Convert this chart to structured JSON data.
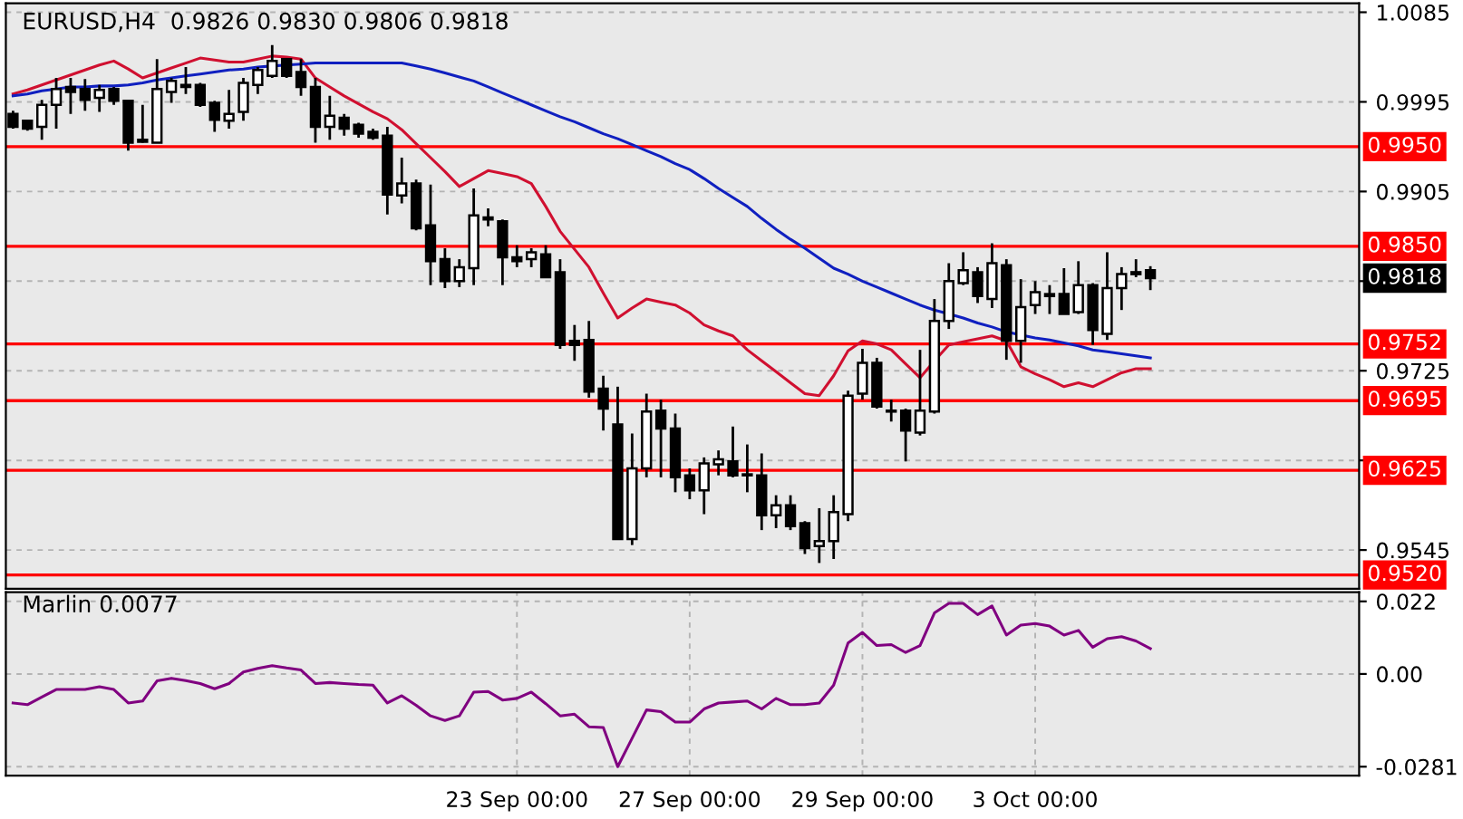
{
  "chart_data": [
    {
      "type": "candlestick",
      "title": "EURUSD,H4  0.9826 0.9830 0.9806 0.9818",
      "grid": true,
      "tick_labels": "y",
      "categories": [
        null,
        null,
        null,
        null,
        null,
        null,
        null,
        null,
        null,
        null,
        null,
        null,
        null,
        null,
        null,
        null,
        null,
        null,
        null,
        null,
        null,
        null,
        null,
        null,
        null,
        null,
        null,
        null,
        null,
        null,
        null,
        null,
        null,
        null,
        null,
        null,
        null,
        null,
        null,
        null,
        null,
        null,
        null,
        null,
        null,
        null,
        null,
        null,
        null,
        null,
        null,
        null,
        null,
        null,
        null,
        null,
        null,
        null,
        null,
        null,
        null,
        null,
        null,
        null,
        null,
        null,
        null,
        null,
        null,
        null,
        null,
        null,
        null,
        null,
        null,
        null,
        null,
        null,
        null,
        null,
        null,
        null,
        null,
        null,
        null,
        null,
        null,
        null,
        null,
        null,
        null,
        null,
        null,
        null
      ],
      "ohlc": [
        [
          0.9983,
          0.9986,
          0.9968,
          0.997
        ],
        [
          0.9976,
          0.9977,
          0.9966,
          0.9968
        ],
        [
          0.997,
          0.9997,
          0.9957,
          0.9992
        ],
        [
          0.9992,
          1.0019,
          0.9968,
          1.0008
        ],
        [
          1.001,
          1.0019,
          0.9983,
          1.0005
        ],
        [
          1.0008,
          1.0018,
          0.9986,
          0.9997
        ],
        [
          0.9999,
          1.0012,
          0.9985,
          1.0007
        ],
        [
          1.0008,
          1.001,
          0.9992,
          0.9996
        ],
        [
          0.9996,
          0.9997,
          0.9946,
          0.9954
        ],
        [
          0.9955,
          0.9992,
          0.9954,
          0.9957
        ],
        [
          0.9954,
          1.0038,
          0.9954,
          1.0008
        ],
        [
          1.0005,
          1.0019,
          0.9994,
          1.0016
        ],
        [
          1.001,
          1.003,
          1.0003,
          1.0012
        ],
        [
          1.0012,
          1.0014,
          0.999,
          0.9992
        ],
        [
          0.9994,
          0.9996,
          0.9965,
          0.9977
        ],
        [
          0.9976,
          1.0007,
          0.9968,
          0.9983
        ],
        [
          0.9985,
          1.0019,
          0.9976,
          1.0014
        ],
        [
          1.0012,
          1.003,
          1.0003,
          1.0027
        ],
        [
          1.0021,
          1.0052,
          1.0019,
          1.0036
        ],
        [
          1.0038,
          1.0039,
          1.0019,
          1.0021
        ],
        [
          1.0025,
          1.0038,
          1.0001,
          1.001
        ],
        [
          1.001,
          1.0019,
          0.9954,
          0.997
        ],
        [
          0.997,
          1.0001,
          0.9957,
          0.9981
        ],
        [
          0.9979,
          0.9983,
          0.9961,
          0.9968
        ],
        [
          0.9972,
          0.9974,
          0.9959,
          0.9963
        ],
        [
          0.9965,
          0.9968,
          0.9957,
          0.9959
        ],
        [
          0.9961,
          0.997,
          0.9882,
          0.9902
        ],
        [
          0.9901,
          0.9939,
          0.9893,
          0.9913
        ],
        [
          0.9913,
          0.9917,
          0.9866,
          0.9868
        ],
        [
          0.9871,
          0.9912,
          0.9811,
          0.9835
        ],
        [
          0.9837,
          0.9848,
          0.9808,
          0.9815
        ],
        [
          0.9815,
          0.9837,
          0.9809,
          0.9829
        ],
        [
          0.9828,
          0.9908,
          0.9811,
          0.9881
        ],
        [
          0.9877,
          0.9888,
          0.987,
          0.9879
        ],
        [
          0.9875,
          0.9877,
          0.9811,
          0.9839
        ],
        [
          0.9839,
          0.9851,
          0.9829,
          0.9835
        ],
        [
          0.9837,
          0.9848,
          0.9829,
          0.9844
        ],
        [
          0.9842,
          0.9851,
          0.9819,
          0.9819
        ],
        [
          0.9824,
          0.9837,
          0.9747,
          0.9751
        ],
        [
          0.9755,
          0.9771,
          0.9735,
          0.9751
        ],
        [
          0.9756,
          0.9775,
          0.9698,
          0.9704
        ],
        [
          0.9707,
          0.972,
          0.9665,
          0.9687
        ],
        [
          0.9671,
          0.9709,
          0.9556,
          0.9556
        ],
        [
          0.9556,
          0.9662,
          0.955,
          0.9627
        ],
        [
          0.9627,
          0.9702,
          0.9618,
          0.9684
        ],
        [
          0.9685,
          0.9696,
          0.9618,
          0.9667
        ],
        [
          0.9667,
          0.9682,
          0.9603,
          0.9618
        ],
        [
          0.962,
          0.9627,
          0.9596,
          0.9605
        ],
        [
          0.9605,
          0.9638,
          0.9581,
          0.9632
        ],
        [
          0.9631,
          0.9645,
          0.962,
          0.9636
        ],
        [
          0.9634,
          0.9669,
          0.9618,
          0.962
        ],
        [
          0.9621,
          0.9651,
          0.9603,
          0.962
        ],
        [
          0.962,
          0.9642,
          0.9565,
          0.958
        ],
        [
          0.958,
          0.96,
          0.9567,
          0.959
        ],
        [
          0.959,
          0.96,
          0.9565,
          0.9569
        ],
        [
          0.9572,
          0.9574,
          0.9541,
          0.9547
        ],
        [
          0.9549,
          0.9587,
          0.9532,
          0.9554
        ],
        [
          0.9554,
          0.96,
          0.9536,
          0.9583
        ],
        [
          0.9581,
          0.9705,
          0.9574,
          0.97
        ],
        [
          0.9702,
          0.9747,
          0.9696,
          0.9733
        ],
        [
          0.9733,
          0.9738,
          0.9687,
          0.9689
        ],
        [
          0.9685,
          0.9696,
          0.9674,
          0.9684
        ],
        [
          0.9685,
          0.9687,
          0.9634,
          0.9665
        ],
        [
          0.9663,
          0.9746,
          0.966,
          0.9685
        ],
        [
          0.9684,
          0.9797,
          0.9682,
          0.9775
        ],
        [
          0.9775,
          0.9833,
          0.9767,
          0.9815
        ],
        [
          0.9813,
          0.9844,
          0.9811,
          0.9826
        ],
        [
          0.9824,
          0.9829,
          0.9793,
          0.98
        ],
        [
          0.9797,
          0.9853,
          0.9788,
          0.9833
        ],
        [
          0.9831,
          0.9837,
          0.9736,
          0.9755
        ],
        [
          0.9755,
          0.9817,
          0.9733,
          0.9789
        ],
        [
          0.9791,
          0.9815,
          0.9782,
          0.9804
        ],
        [
          0.9802,
          0.9811,
          0.9782,
          0.98
        ],
        [
          0.9802,
          0.9828,
          0.9782,
          0.9782
        ],
        [
          0.9784,
          0.9835,
          0.9782,
          0.9811
        ],
        [
          0.9811,
          0.9813,
          0.9751,
          0.9766
        ],
        [
          0.9762,
          0.9844,
          0.9756,
          0.9808
        ],
        [
          0.9808,
          0.9829,
          0.9786,
          0.9822
        ],
        [
          0.9822,
          0.9837,
          0.9819,
          0.9824
        ],
        [
          0.9826,
          0.983,
          0.9806,
          0.9818
        ],
        null,
        null,
        null,
        null,
        null,
        null,
        null,
        null,
        null,
        null,
        null,
        null,
        null,
        null
      ],
      "series": [
        {
          "type": "line",
          "color": "#d01030",
          "values": [
            1.0003,
            1.0007,
            1.0012,
            1.0017,
            1.0022,
            1.0027,
            1.0032,
            1.0036,
            1.0028,
            1.0019,
            1.0024,
            1.0029,
            1.0034,
            1.0039,
            1.0037,
            1.0035,
            1.0035,
            1.0038,
            1.0041,
            1.004,
            1.0038,
            1.0019,
            1.001,
            1.0001,
            0.9993,
            0.9985,
            0.9978,
            0.9967,
            0.9953,
            0.9939,
            0.9925,
            0.991,
            0.9918,
            0.9926,
            0.9923,
            0.992,
            0.9913,
            0.989,
            0.9865,
            0.9847,
            0.9829,
            0.9803,
            0.9778,
            0.9788,
            0.9797,
            0.9794,
            0.9791,
            0.9783,
            0.9771,
            0.9765,
            0.976,
            0.9746,
            0.9735,
            0.9724,
            0.9713,
            0.9702,
            0.97,
            0.972,
            0.9745,
            0.9755,
            0.9752,
            0.9746,
            0.9732,
            0.9718,
            0.9735,
            0.9751,
            0.9754,
            0.9757,
            0.976,
            0.9755,
            0.9729,
            0.9722,
            0.9716,
            0.9709,
            0.9713,
            0.9709,
            0.9716,
            0.9723,
            0.9727,
            0.9727,
            null,
            null,
            null,
            null,
            null,
            null,
            null,
            null,
            null,
            null,
            null,
            null,
            null,
            null
          ]
        },
        {
          "type": "line",
          "color": "#1020c0",
          "values": [
            1.0001,
            1.0003,
            1.0006,
            1.0008,
            1.001,
            1.001,
            1.0011,
            1.0011,
            1.0012,
            1.0014,
            1.0017,
            1.0019,
            1.0021,
            1.0023,
            1.0025,
            1.0027,
            1.0028,
            1.003,
            1.0031,
            1.0032,
            1.0033,
            1.0034,
            1.0034,
            1.0034,
            1.0034,
            1.0034,
            1.0034,
            1.0034,
            1.0031,
            1.0028,
            1.0024,
            1.002,
            1.0016,
            1.001,
            1.0004,
            0.9998,
            0.9992,
            0.9986,
            0.998,
            0.9975,
            0.9969,
            0.9963,
            0.9958,
            0.9952,
            0.9946,
            0.994,
            0.9933,
            0.9927,
            0.9918,
            0.9908,
            0.9899,
            0.989,
            0.9878,
            0.9867,
            0.9857,
            0.9848,
            0.9838,
            0.9828,
            0.9822,
            0.9815,
            0.9809,
            0.9803,
            0.9797,
            0.9791,
            0.9786,
            0.9782,
            0.9778,
            0.9773,
            0.9769,
            0.9764,
            0.9761,
            0.9758,
            0.9756,
            0.9753,
            0.975,
            0.9746,
            0.9744,
            0.9742,
            0.974,
            0.9738,
            null,
            null,
            null,
            null,
            null,
            null,
            null,
            null,
            null,
            null,
            null,
            null,
            null,
            null
          ]
        }
      ],
      "ref_lines": [
        {
          "axis": "y",
          "value": 0.995,
          "label": "0.9950",
          "color": "#ff0000"
        },
        {
          "axis": "y",
          "value": 0.985,
          "label": "0.9850",
          "color": "#ff0000"
        },
        {
          "axis": "y",
          "value": 0.9752,
          "label": "0.9752",
          "color": "#ff0000"
        },
        {
          "axis": "y",
          "value": 0.9695,
          "label": "0.9695",
          "color": "#ff0000"
        },
        {
          "axis": "y",
          "value": 0.9625,
          "label": "0.9625",
          "color": "#ff0000"
        },
        {
          "axis": "y",
          "value": 0.952,
          "label": "0.9520",
          "color": "#ff0000"
        }
      ],
      "annotations": [
        "0.9818"
      ],
      "ylim": [
        0.9506,
        1.0094
      ],
      "yticks": [
        1.0085,
        0.9995,
        0.9905,
        {
          "value": 0.9815,
          "label": null
        },
        0.9725,
        {
          "value": 0.9635,
          "label": null
        },
        0.9545
      ]
    },
    {
      "type": "line",
      "title": "Marlin 0.0077",
      "grid": true,
      "categories": [
        null,
        null,
        null,
        null,
        null,
        null,
        null,
        null,
        null,
        null,
        null,
        null,
        null,
        null,
        null,
        null,
        null,
        null,
        null,
        null,
        null,
        null,
        null,
        null,
        null,
        null,
        null,
        null,
        null,
        null,
        null,
        null,
        null,
        null,
        null,
        "23 Sep 00:00",
        null,
        null,
        null,
        null,
        null,
        null,
        null,
        null,
        null,
        null,
        null,
        "27 Sep 00:00",
        null,
        null,
        null,
        null,
        null,
        null,
        null,
        null,
        null,
        null,
        null,
        "29 Sep 00:00",
        null,
        null,
        null,
        null,
        null,
        null,
        null,
        null,
        null,
        null,
        null,
        "3 Oct 00:00",
        null,
        null,
        null,
        null,
        null,
        null,
        null,
        null,
        null,
        null,
        null,
        null,
        null,
        null,
        null,
        null,
        null,
        null,
        null,
        null,
        null,
        null
      ],
      "series": [
        {
          "color": "#800080",
          "values": [
            -0.0088,
            -0.0093,
            -0.007,
            -0.0047,
            -0.0047,
            -0.0047,
            -0.0039,
            -0.0047,
            -0.0088,
            -0.0082,
            -0.0021,
            -0.0013,
            -0.002,
            -0.0029,
            -0.0045,
            -0.0029,
            0.0006,
            0.0017,
            0.0025,
            0.0018,
            0.0012,
            -0.0029,
            -0.0026,
            -0.0029,
            -0.0032,
            -0.0034,
            -0.0088,
            -0.0066,
            -0.0095,
            -0.0127,
            -0.0141,
            -0.0127,
            -0.0055,
            -0.0053,
            -0.0079,
            -0.0074,
            -0.0055,
            -0.009,
            -0.0127,
            -0.0122,
            -0.016,
            -0.0162,
            -0.0281,
            -0.0195,
            -0.0109,
            -0.0114,
            -0.0146,
            -0.0146,
            -0.0106,
            -0.0088,
            -0.0085,
            -0.0082,
            -0.0106,
            -0.0074,
            -0.0093,
            -0.0093,
            -0.0088,
            -0.0034,
            0.0094,
            0.0126,
            0.0086,
            0.0089,
            0.0065,
            0.0086,
            0.0185,
            0.0214,
            0.0214,
            0.018,
            0.0206,
            0.0118,
            0.0148,
            0.0153,
            0.0145,
            0.0118,
            0.0132,
            0.0081,
            0.0107,
            0.0113,
            0.01,
            0.0077,
            null,
            null,
            null,
            null,
            null,
            null,
            null,
            null,
            null,
            null,
            null,
            null,
            null,
            null
          ]
        }
      ],
      "ylim": [
        -0.0308,
        0.0248
      ],
      "yticks": [
        0.022,
        {
          "value": 0,
          "label": "0.00"
        },
        {
          "value": -0.0281,
          "label": "-0.0281"
        }
      ]
    }
  ]
}
